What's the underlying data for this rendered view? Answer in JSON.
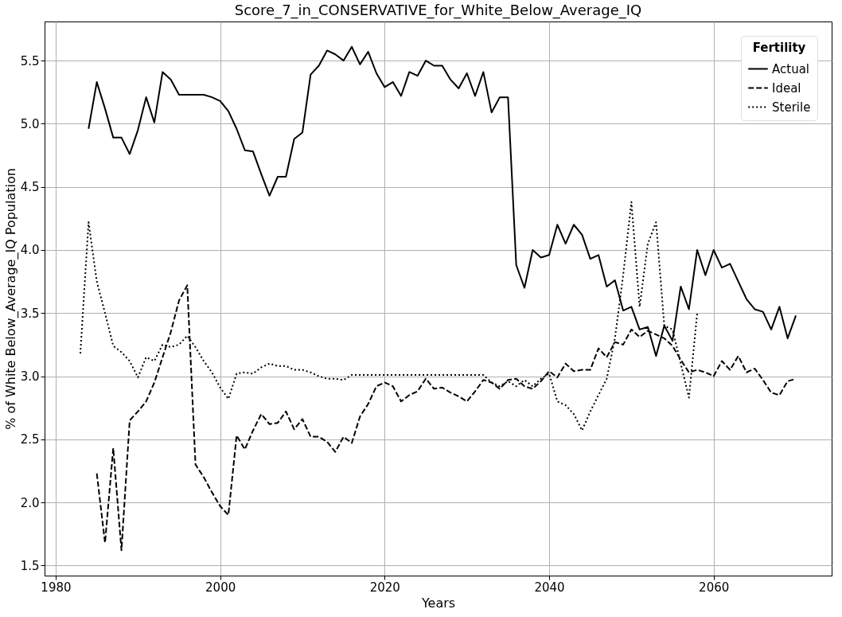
{
  "chart_data": {
    "type": "line",
    "title": "Score_7_in_CONSERVATIVE_for_White_Below_Average_IQ",
    "xlabel": "Years",
    "ylabel": "% of White Below_Average_IQ Population",
    "legend_title": "Fertility",
    "legend": "top right",
    "grid": true,
    "xlim": [
      1978.65,
      2074.35
    ],
    "xticks": [
      1980,
      2000,
      2020,
      2040,
      2060
    ],
    "ylim": [
      1.42,
      5.81
    ],
    "yticks": [
      1.5,
      {
        "value": 2,
        "label": "2.0"
      },
      2.5,
      {
        "value": 3,
        "label": "3.0"
      },
      3.5,
      {
        "value": 4,
        "label": "4.0"
      },
      4.5,
      {
        "value": 5,
        "label": "5.0"
      },
      5.5
    ],
    "series": [
      {
        "name": "Actual",
        "color": "#000000",
        "line_style": "solid",
        "x": [
          1984,
          1985,
          1986,
          1987,
          1988,
          1989,
          1990,
          1991,
          1992,
          1993,
          1994,
          1995,
          1996,
          1997,
          1998,
          1999,
          2000,
          2001,
          2002,
          2003,
          2004,
          2005,
          2006,
          2007,
          2008,
          2009,
          2010,
          2011,
          2012,
          2013,
          2014,
          2015,
          2016,
          2017,
          2018,
          2019,
          2020,
          2021,
          2022,
          2023,
          2024,
          2025,
          2026,
          2027,
          2028,
          2029,
          2030,
          2031,
          2032,
          2033,
          2034,
          2035,
          2036,
          2037,
          2038,
          2039,
          2040,
          2041,
          2042,
          2043,
          2044,
          2045,
          2046,
          2047,
          2048,
          2049,
          2050,
          2051,
          2052,
          2053,
          2054,
          2055,
          2056,
          2057,
          2058,
          2059,
          2060,
          2061,
          2062,
          2063,
          2064,
          2065,
          2066,
          2067,
          2068,
          2069,
          2070
        ],
        "values": [
          4.96,
          5.33,
          5.12,
          4.89,
          4.89,
          4.76,
          4.95,
          5.21,
          5.01,
          5.41,
          5.35,
          5.23,
          5.23,
          5.23,
          5.23,
          5.21,
          5.18,
          5.1,
          4.96,
          4.79,
          4.78,
          4.6,
          4.43,
          4.58,
          4.58,
          4.88,
          4.93,
          5.39,
          5.46,
          5.58,
          5.55,
          5.5,
          5.61,
          5.47,
          5.57,
          5.4,
          5.29,
          5.33,
          5.22,
          5.41,
          5.38,
          5.5,
          5.46,
          5.46,
          5.35,
          5.28,
          5.4,
          5.22,
          5.41,
          5.09,
          5.21,
          5.21,
          3.88,
          3.7,
          4.0,
          3.94,
          3.96,
          4.2,
          4.05,
          4.2,
          4.12,
          3.93,
          3.96,
          3.71,
          3.76,
          3.52,
          3.55,
          3.37,
          3.39,
          3.16,
          3.4,
          3.28,
          3.71,
          3.53,
          4.0,
          3.8,
          4.0,
          3.86,
          3.89,
          3.75,
          3.61,
          3.53,
          3.51,
          3.37,
          3.55,
          3.3,
          3.48
        ]
      },
      {
        "name": "Ideal",
        "color": "#000000",
        "line_style": "dashed",
        "x": [
          1985,
          1986,
          1987,
          1988,
          1989,
          1990,
          1991,
          1992,
          1993,
          1994,
          1995,
          1996,
          1997,
          1998,
          1999,
          2000,
          2001,
          2002,
          2003,
          2004,
          2005,
          2006,
          2007,
          2008,
          2009,
          2010,
          2011,
          2012,
          2013,
          2014,
          2015,
          2016,
          2017,
          2018,
          2019,
          2020,
          2021,
          2022,
          2023,
          2024,
          2025,
          2026,
          2027,
          2028,
          2029,
          2030,
          2031,
          2032,
          2033,
          2034,
          2035,
          2036,
          2037,
          2038,
          2039,
          2040,
          2041,
          2042,
          2043,
          2044,
          2045,
          2046,
          2047,
          2048,
          2049,
          2050,
          2051,
          2052,
          2053,
          2054,
          2055,
          2056,
          2057,
          2058,
          2059,
          2060,
          2061,
          2062,
          2063,
          2064,
          2065,
          2066,
          2067,
          2068,
          2069,
          2070
        ],
        "values": [
          2.23,
          1.68,
          2.43,
          1.62,
          2.65,
          2.72,
          2.8,
          2.95,
          3.15,
          3.35,
          3.6,
          3.72,
          2.3,
          2.2,
          2.08,
          1.97,
          1.9,
          2.53,
          2.42,
          2.57,
          2.7,
          2.62,
          2.63,
          2.72,
          2.58,
          2.66,
          2.52,
          2.52,
          2.48,
          2.4,
          2.52,
          2.47,
          2.68,
          2.78,
          2.92,
          2.95,
          2.92,
          2.8,
          2.85,
          2.88,
          2.98,
          2.9,
          2.91,
          2.87,
          2.84,
          2.8,
          2.88,
          2.97,
          2.95,
          2.9,
          2.97,
          2.98,
          2.92,
          2.9,
          2.96,
          3.04,
          2.99,
          3.1,
          3.04,
          3.05,
          3.05,
          3.22,
          3.15,
          3.27,
          3.25,
          3.37,
          3.31,
          3.36,
          3.33,
          3.3,
          3.24,
          3.13,
          3.03,
          3.05,
          3.03,
          3.0,
          3.12,
          3.05,
          3.16,
          3.03,
          3.06,
          2.97,
          2.87,
          2.85,
          2.96,
          2.98
        ]
      },
      {
        "name": "Sterile",
        "color": "#000000",
        "line_style": "dotted",
        "x": [
          1983,
          1984,
          1985,
          1986,
          1987,
          1988,
          1989,
          1990,
          1991,
          1992,
          1993,
          1994,
          1995,
          1996,
          1997,
          1998,
          1999,
          2000,
          2001,
          2002,
          2003,
          2004,
          2005,
          2006,
          2007,
          2008,
          2009,
          2010,
          2011,
          2012,
          2013,
          2014,
          2015,
          2016,
          2017,
          2018,
          2019,
          2020,
          2021,
          2022,
          2023,
          2024,
          2025,
          2026,
          2027,
          2028,
          2029,
          2030,
          2031,
          2032,
          2033,
          2034,
          2035,
          2036,
          2037,
          2038,
          2039,
          2040,
          2041,
          2042,
          2043,
          2044,
          2045,
          2046,
          2047,
          2048,
          2049,
          2050,
          2051,
          2052,
          2053,
          2054,
          2055,
          2056,
          2057,
          2058
        ],
        "values": [
          3.18,
          4.22,
          3.75,
          3.5,
          3.24,
          3.19,
          3.12,
          2.99,
          3.15,
          3.12,
          3.25,
          3.23,
          3.25,
          3.32,
          3.23,
          3.12,
          3.03,
          2.91,
          2.82,
          3.02,
          3.03,
          3.02,
          3.07,
          3.1,
          3.08,
          3.08,
          3.05,
          3.05,
          3.03,
          3.0,
          2.98,
          2.98,
          2.97,
          3.01,
          3.01,
          3.01,
          3.01,
          3.01,
          3.01,
          3.01,
          3.01,
          3.01,
          3.01,
          3.01,
          3.01,
          3.01,
          3.01,
          3.01,
          3.01,
          3.01,
          2.95,
          2.92,
          2.96,
          2.92,
          2.97,
          2.92,
          2.98,
          3.02,
          2.8,
          2.77,
          2.7,
          2.57,
          2.72,
          2.85,
          2.98,
          3.3,
          3.8,
          4.38,
          3.55,
          4.05,
          4.22,
          3.4,
          3.37,
          3.1,
          2.83,
          3.5
        ]
      }
    ]
  }
}
